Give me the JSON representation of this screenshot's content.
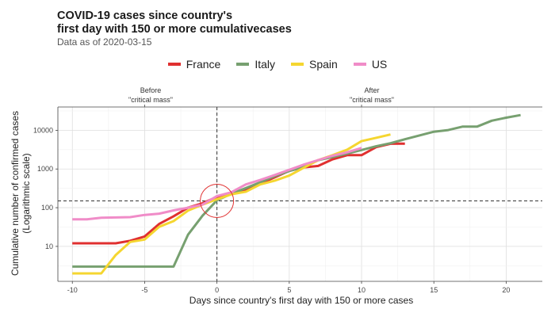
{
  "title_line1": "COVID-19 cases since country's",
  "title_line2": "first day with 150 or more cumulativecases",
  "subtitle": "Data as of 2020-03-15",
  "chart_data": {
    "type": "line",
    "xlabel": "Days since country's first day with 150 or more cases",
    "ylabel_line1": "Cumulative number of confirmed cases",
    "ylabel_line2": "(Logarithmic scale)",
    "y_scale": "log10",
    "xlim": [
      -11,
      22.5
    ],
    "ylim": [
      1.25,
      40000
    ],
    "x_ticks": [
      -10,
      -5,
      0,
      5,
      10,
      15,
      20
    ],
    "x_tick_labels": [
      "-10",
      "-5",
      "0",
      "5",
      "10",
      "15",
      "20"
    ],
    "y_ticks": [
      10,
      100,
      1000,
      10000
    ],
    "y_tick_labels": [
      "10",
      "100",
      "1000",
      "10000"
    ],
    "grid": true,
    "legend_position": "top",
    "annotations": {
      "before_line1": "Before",
      "before_line2": "\"critical mass\"",
      "after_line1": "After",
      "after_line2": "\"critical mass\"",
      "vline_x": 0,
      "hline_y": 150,
      "circle_center": [
        0,
        150
      ]
    },
    "series": [
      {
        "name": "France",
        "color": "#e03030",
        "x": [
          -10,
          -9,
          -8,
          -7,
          -6,
          -5,
          -4,
          -3,
          -2,
          -1,
          0,
          1,
          2,
          3,
          4,
          5,
          6,
          7,
          8,
          9,
          10,
          11,
          12,
          13
        ],
        "y": [
          12,
          12,
          12,
          12,
          14,
          18,
          38,
          60,
          100,
          130,
          190,
          230,
          290,
          420,
          610,
          900,
          1100,
          1200,
          1780,
          2280,
          2280,
          3660,
          4480,
          4500
        ]
      },
      {
        "name": "Italy",
        "color": "#77a070",
        "x": [
          -10,
          -9,
          -8,
          -7,
          -6,
          -5,
          -4,
          -3,
          -2,
          -1,
          0,
          1,
          2,
          3,
          4,
          5,
          6,
          7,
          8,
          9,
          10,
          11,
          12,
          13,
          14,
          15,
          16,
          17,
          18,
          19,
          20,
          21
        ],
        "y": [
          3,
          3,
          3,
          3,
          3,
          3,
          3,
          3,
          20,
          62,
          155,
          229,
          322,
          453,
          655,
          888,
          1128,
          1694,
          2036,
          2502,
          3089,
          3858,
          4636,
          5883,
          7375,
          9172,
          10149,
          12462,
          12462,
          17660,
          21157,
          24747
        ]
      },
      {
        "name": "Spain",
        "color": "#f5d630",
        "x": [
          -10,
          -9,
          -8,
          -7,
          -6,
          -5,
          -4,
          -3,
          -2,
          -1,
          0,
          1,
          2,
          3,
          4,
          5,
          6,
          7,
          8,
          9,
          10,
          11,
          12
        ],
        "y": [
          2,
          2,
          2,
          6,
          13,
          15,
          32,
          45,
          84,
          120,
          165,
          222,
          259,
          400,
          500,
          673,
          1073,
          1695,
          2277,
          3146,
          5232,
          6391,
          7798
        ]
      },
      {
        "name": "US",
        "color": "#f08cc8",
        "x": [
          -10,
          -9,
          -8,
          -7,
          -6,
          -5,
          -4,
          -3,
          -2,
          -1,
          0,
          1,
          2,
          3,
          4,
          5,
          6,
          7,
          8,
          9,
          10
        ],
        "y": [
          50,
          50,
          55,
          56,
          57,
          65,
          70,
          85,
          100,
          120,
          200,
          250,
          400,
          520,
          700,
          950,
          1300,
          1700,
          2200,
          2700,
          3500
        ]
      }
    ]
  }
}
